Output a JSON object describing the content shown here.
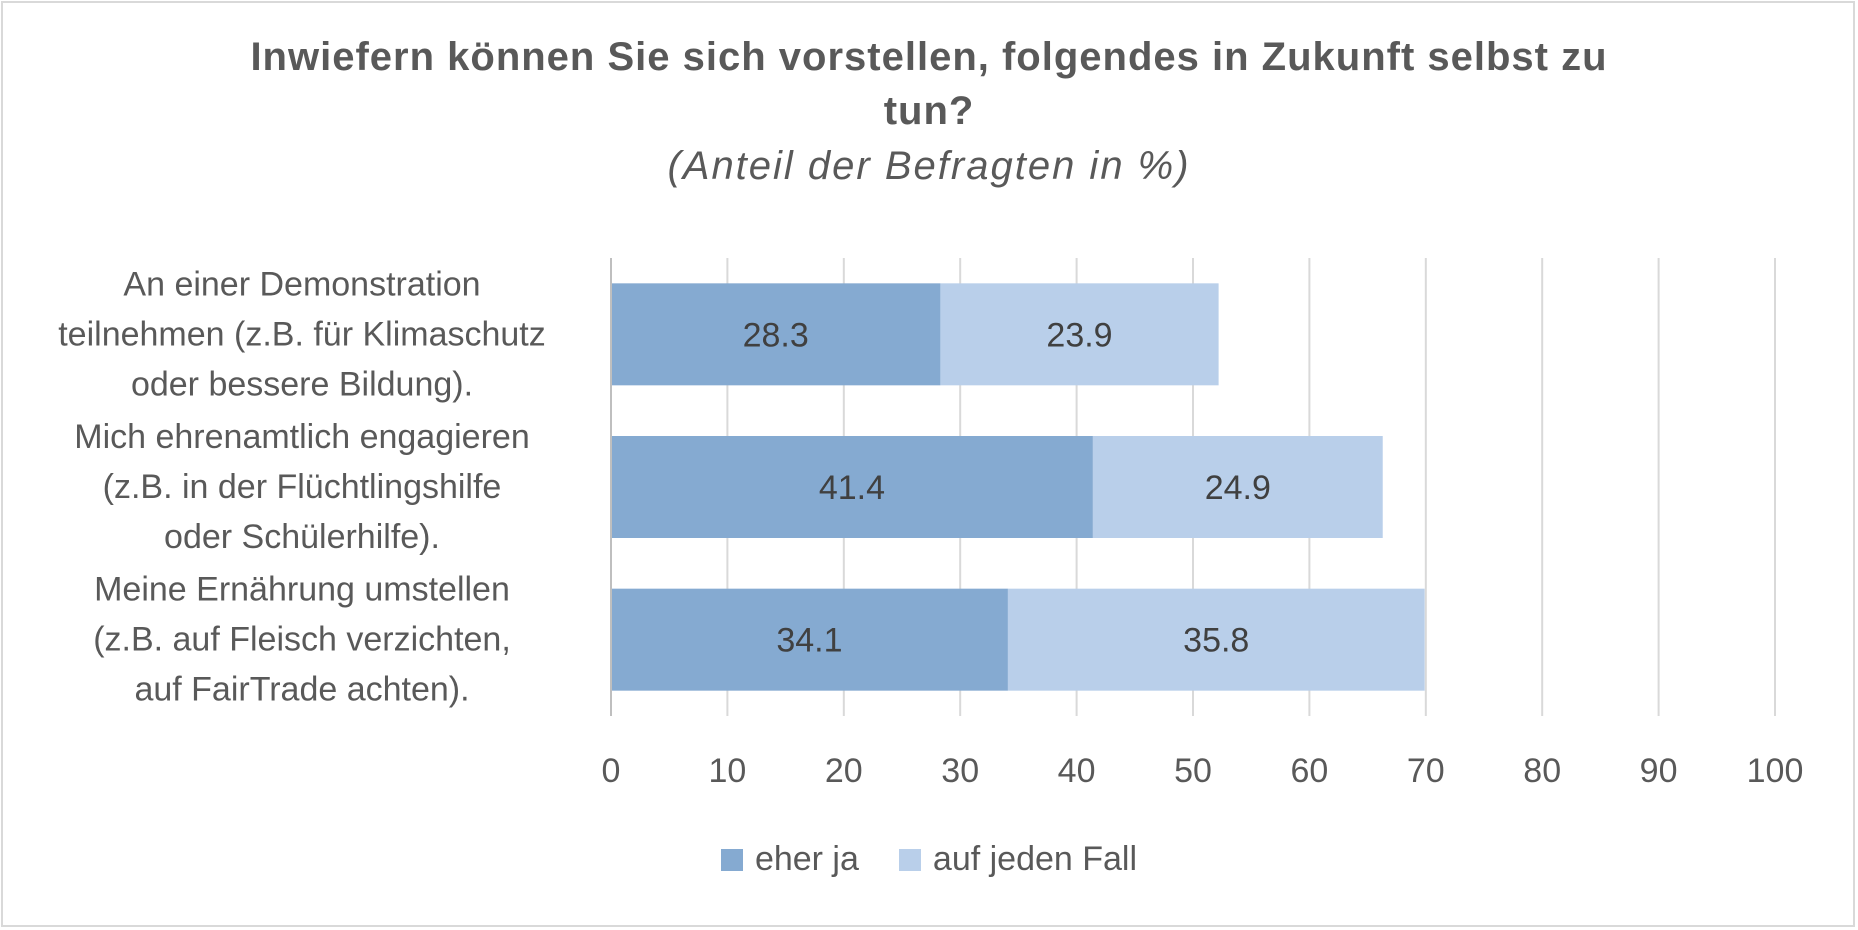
{
  "chart_data": {
    "type": "bar",
    "orientation": "horizontal",
    "stacked": true,
    "title": "Inwiefern können Sie sich vorstellen, folgendes in Zukunft selbst zu tun?",
    "subtitle": "(Anteil der Befragten in %)",
    "categories": [
      [
        "An einer Demonstration",
        "teilnehmen (z.B. für Klimaschutz",
        "oder bessere Bildung)."
      ],
      [
        "Mich ehrenamtlich engagieren",
        "(z.B. in der Flüchtlingshilfe",
        "oder Schülerhilfe)."
      ],
      [
        "Meine Ernährung umstellen",
        "(z.B. auf Fleisch verzichten,",
        "auf FairTrade achten)."
      ]
    ],
    "series": [
      {
        "name": "eher ja",
        "color": "#85aad1",
        "values": [
          28.3,
          41.4,
          34.1
        ]
      },
      {
        "name": "auf jeden Fall",
        "color": "#b9cfea",
        "values": [
          23.9,
          24.9,
          35.8
        ]
      }
    ],
    "xlim": [
      0,
      100
    ],
    "xticks": [
      "0",
      "10",
      "20",
      "30",
      "40",
      "50",
      "60",
      "70",
      "80",
      "90",
      "100"
    ],
    "grid": true,
    "legend_position": "bottom"
  }
}
